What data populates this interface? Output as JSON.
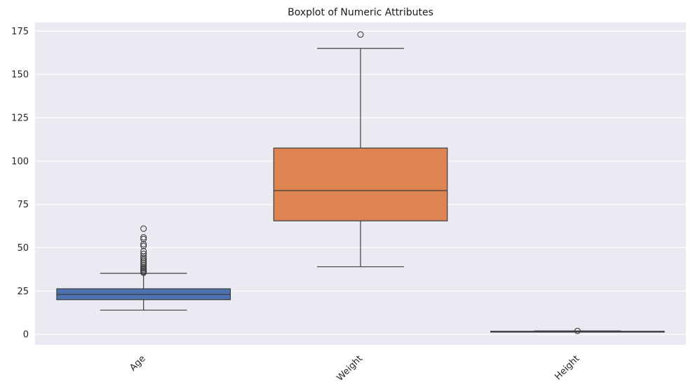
{
  "chart_data": {
    "type": "box",
    "title": "Boxplot of Numeric Attributes",
    "xlabel": "",
    "ylabel": "",
    "ylim": [
      -6,
      180
    ],
    "yticks": [
      0,
      25,
      50,
      75,
      100,
      125,
      150,
      175
    ],
    "grid": true,
    "categories": [
      "Age",
      "Weight",
      "Height"
    ],
    "boxes": [
      {
        "category": "Age",
        "color": "#4c72b0",
        "whisker_low": 14,
        "q1": 20,
        "median": 23,
        "q3": 26.3,
        "whisker_high": 35.2,
        "outliers": [
          35.6,
          36.2,
          36.8,
          37.5,
          38.2,
          39,
          40,
          41,
          42,
          43,
          44,
          45,
          46.5,
          48,
          51,
          52,
          55,
          56,
          61
        ]
      },
      {
        "category": "Weight",
        "color": "#dd8452",
        "whisker_low": 39,
        "q1": 65.5,
        "median": 83,
        "q3": 107.5,
        "whisker_high": 165,
        "outliers": [
          173
        ]
      },
      {
        "category": "Height",
        "color": "#55a868",
        "whisker_low": 1.45,
        "q1": 1.63,
        "median": 1.7,
        "q3": 1.77,
        "whisker_high": 1.98,
        "outliers": [
          1.98
        ]
      }
    ]
  }
}
